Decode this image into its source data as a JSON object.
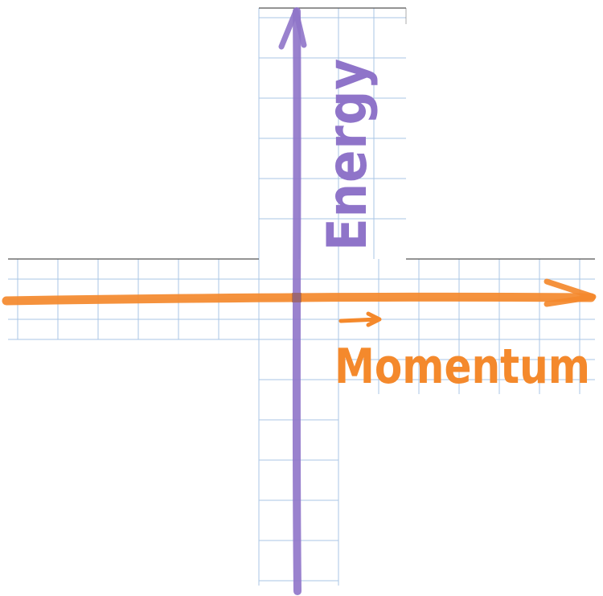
{
  "diagram": {
    "y_axis_label": "Energy",
    "x_axis_label": "Momentum",
    "colors": {
      "energy_axis": "#8f74c9",
      "momentum_axis": "#f4892c",
      "grid": "#a8c6e6",
      "paper": "#ffffff"
    },
    "icons": {
      "energy_arrow": "arrow-up-icon",
      "momentum_arrow": "arrow-right-icon",
      "vector_mark": "vector-arrow-icon"
    }
  }
}
